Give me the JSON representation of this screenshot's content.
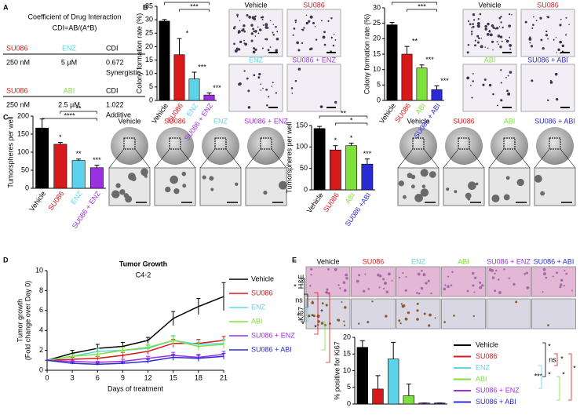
{
  "panel_labels": [
    "A",
    "B",
    "C",
    "D",
    "E"
  ],
  "table": {
    "title": "Coefficient of Drug Interaction",
    "formula": "CDI=AB/(A*B)",
    "blocks": [
      {
        "header": [
          "SU086",
          "ENZ",
          "CDI"
        ],
        "header_colors": [
          "#d7191c",
          "#5cd3ea",
          "#000000"
        ],
        "row": [
          "250 nM",
          "5 µM",
          "0.672"
        ],
        "note": "Synergistic"
      },
      {
        "header": [
          "SU086",
          "ABI",
          "CDI"
        ],
        "header_colors": [
          "#d7191c",
          "#7ee03a",
          "#000000"
        ],
        "row": [
          "250 nM",
          "2.5 µM",
          "1.022"
        ],
        "note": "Additive"
      }
    ]
  },
  "image_sets": [
    {
      "labels": [
        "Vehicle",
        "SU086",
        "ENZ",
        "SU086 + ENZ"
      ],
      "colors": [
        "#000000",
        "#d7191c",
        "#5cd3ea",
        "#9b30e0"
      ]
    },
    {
      "labels": [
        "Vehicle",
        "SU086",
        "ABI",
        "SU086 + ABI"
      ],
      "colors": [
        "#000000",
        "#d7191c",
        "#7ee03a",
        "#2b2bd6"
      ]
    },
    {
      "labels": [
        "Vehicle",
        "SU086",
        "ENZ",
        "SU086 + ENZ"
      ],
      "colors": [
        "#000000",
        "#d7191c",
        "#5cd3ea",
        "#9b30e0"
      ]
    },
    {
      "labels": [
        "Vehicle",
        "SU086",
        "ABI",
        "SU086 + ABI"
      ],
      "colors": [
        "#000000",
        "#d7191c",
        "#7ee03a",
        "#2b2bd6"
      ]
    }
  ],
  "histology": {
    "columns": [
      "Vehicle",
      "SU086",
      "ENZ",
      "ABI",
      "SU086 + ENZ",
      "SU086 + ABI"
    ],
    "column_colors": [
      "#000000",
      "#d7191c",
      "#5cd3ea",
      "#7ee03a",
      "#9b30e0",
      "#2b2bd6"
    ],
    "rows": [
      "H&E",
      "Ki67"
    ]
  },
  "chart_data": [
    {
      "type": "bar",
      "ylabel": "Colony formation rate (%)",
      "categories": [
        "Vehicle",
        "SU086",
        "ENZ",
        "SU086 + ENZ"
      ],
      "values": [
        29.5,
        17,
        8,
        2
      ],
      "errors": [
        0.6,
        6,
        2.5,
        0.8
      ],
      "colors": [
        "#000000",
        "#d7191c",
        "#5cd3ea",
        "#9b30e0"
      ],
      "ylim": [
        0,
        35
      ],
      "yticks": [
        0,
        5,
        10,
        15,
        20,
        25,
        30,
        35
      ],
      "markers": [
        null,
        "*",
        "***",
        "***"
      ],
      "brackets": [
        "***",
        "***"
      ]
    },
    {
      "type": "bar",
      "ylabel": "Colony formation rate (%)",
      "categories": [
        "Vehicle",
        "SU086",
        "ABI",
        "SU086 + ABI"
      ],
      "values": [
        24.5,
        15,
        10.5,
        3.5
      ],
      "errors": [
        0.8,
        2.5,
        1,
        1.2
      ],
      "colors": [
        "#000000",
        "#d7191c",
        "#7ee03a",
        "#2b2bd6"
      ],
      "ylim": [
        0,
        30
      ],
      "yticks": [
        0,
        5,
        10,
        15,
        20,
        25,
        30
      ],
      "markers": [
        null,
        "**",
        "***",
        "***"
      ],
      "brackets": [
        "***",
        "***"
      ]
    },
    {
      "type": "bar",
      "ylabel": "Tumorspheres per well",
      "categories": [
        "Vehicle",
        "SU086",
        "ENZ",
        "SU086 + ENZ"
      ],
      "values": [
        167,
        122,
        77,
        57
      ],
      "errors": [
        25,
        5,
        4,
        7
      ],
      "colors": [
        "#000000",
        "#d7191c",
        "#5cd3ea",
        "#9b30e0"
      ],
      "ylim": [
        0,
        200
      ],
      "yticks": [
        0,
        50,
        100,
        150,
        200
      ],
      "markers": [
        null,
        "*",
        "**",
        "***"
      ],
      "brackets": [
        "**",
        "****"
      ]
    },
    {
      "type": "bar",
      "ylabel": "Tumorspheres per well",
      "categories": [
        "Vehicle",
        "SU086",
        "ABI",
        "SU086 +ABI"
      ],
      "values": [
        143,
        93,
        103,
        60
      ],
      "errors": [
        5,
        10,
        6,
        12
      ],
      "colors": [
        "#000000",
        "#d7191c",
        "#7ee03a",
        "#2b2bd6"
      ],
      "ylim": [
        0,
        150
      ],
      "yticks": [
        0,
        50,
        100,
        150
      ],
      "markers": [
        null,
        "*",
        "*",
        "***"
      ],
      "brackets": [
        "**",
        "*"
      ]
    },
    {
      "type": "line",
      "title": "Tumor Growth",
      "subtitle": "C4-2",
      "xlabel": "Days of treatment",
      "ylabel": [
        "Tumor growth",
        "(Fold change over Day 0)"
      ],
      "x": [
        0,
        3,
        6,
        9,
        12,
        15,
        18,
        21
      ],
      "xlim": [
        0,
        21
      ],
      "xticks": [
        0,
        3,
        6,
        9,
        12,
        15,
        18,
        21
      ],
      "ylim": [
        0,
        10
      ],
      "yticks": [
        0,
        2,
        4,
        6,
        8,
        10
      ],
      "legend": "right",
      "series": [
        {
          "name": "Vehicle",
          "color": "#000000",
          "values": [
            1,
            1.7,
            2.2,
            2.4,
            3,
            5.2,
            6.4,
            7.4
          ],
          "errors": [
            0,
            0.3,
            0.4,
            0.4,
            0.3,
            0.7,
            0.8,
            1.4
          ]
        },
        {
          "name": "SU086",
          "color": "#d7191c",
          "values": [
            1,
            1.1,
            1.2,
            1.5,
            1.9,
            2.7,
            2.7,
            3.0
          ],
          "errors": [
            0,
            0.2,
            0.2,
            0.3,
            0.3,
            0.4,
            0.4,
            0.4
          ]
        },
        {
          "name": "ENZ",
          "color": "#5cd3ea",
          "values": [
            1,
            1.4,
            1.9,
            2.0,
            2.2,
            3.0,
            2.6,
            2.7
          ],
          "errors": [
            0,
            0.2,
            0.3,
            0.3,
            0.3,
            0.5,
            0.4,
            0.4
          ]
        },
        {
          "name": "ABI",
          "color": "#7ee03a",
          "values": [
            1,
            1.4,
            1.6,
            2.0,
            2.3,
            3.0,
            2.4,
            2.6
          ],
          "errors": [
            0,
            0.2,
            0.3,
            0.3,
            0.3,
            0.4,
            0.4,
            0.4
          ]
        },
        {
          "name": "SU086 + ENZ",
          "color": "#9b30e0",
          "values": [
            1,
            0.9,
            0.8,
            0.9,
            1.2,
            1.5,
            1.3,
            1.6
          ],
          "errors": [
            0,
            0.1,
            0.1,
            0.2,
            0.2,
            0.3,
            0.3,
            0.3
          ]
        },
        {
          "name": "SU086 + ABI",
          "color": "#2b2bd6",
          "values": [
            1,
            0.7,
            0.6,
            0.7,
            0.9,
            1.3,
            1.2,
            1.4
          ],
          "errors": [
            0,
            0.1,
            0.1,
            0.1,
            0.2,
            0.3,
            0.3,
            0.3
          ]
        }
      ],
      "significance": [
        "*",
        "ns",
        "*",
        "*",
        "*",
        "*",
        "*"
      ]
    },
    {
      "type": "bar",
      "ylabel": "% positive for Ki67",
      "legend": "right",
      "categories": [
        "Vehicle",
        "SU086",
        "ENZ",
        "ABI",
        "SU086 + ENZ",
        "SU086 + ABI"
      ],
      "values": [
        17,
        4.5,
        13.5,
        2.5,
        0.3,
        0.3
      ],
      "errors": [
        2,
        4,
        5,
        3.5,
        0,
        0
      ],
      "colors": [
        "#000000",
        "#d7191c",
        "#5cd3ea",
        "#7ee03a",
        "#9b30e0",
        "#2b2bd6"
      ],
      "ylim": [
        0,
        20
      ],
      "yticks": [
        0,
        5,
        10,
        15,
        20
      ],
      "significance": [
        "*",
        "ns",
        "*",
        "***",
        "*",
        "*",
        "*"
      ]
    }
  ]
}
